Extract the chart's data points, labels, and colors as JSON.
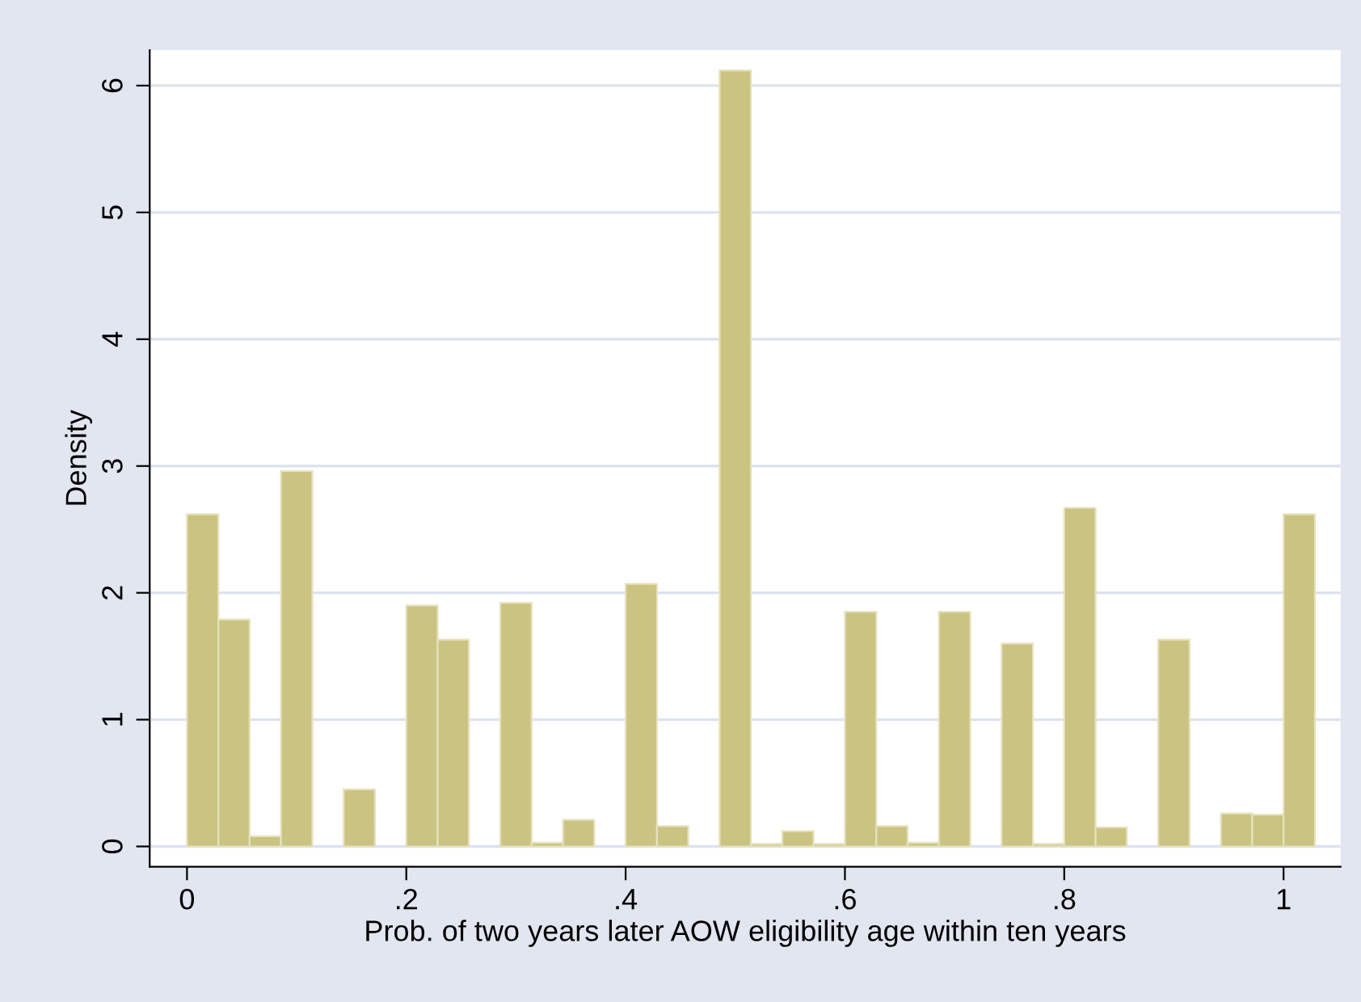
{
  "chart_data": {
    "type": "histogram",
    "xlabel": "Prob. of two years later AOW eligibility age within ten years",
    "ylabel": "Density",
    "bins": [
      0,
      0.0286,
      0.0571,
      0.0857,
      0.1143,
      0.1429,
      0.1714,
      0.2,
      0.2286,
      0.2571,
      0.2857,
      0.3143,
      0.3429,
      0.3714,
      0.4,
      0.4286,
      0.4571,
      0.4857,
      0.5143,
      0.5429,
      0.5714,
      0.6,
      0.6286,
      0.6571,
      0.6857,
      0.7143,
      0.7429,
      0.7714,
      0.8,
      0.8286,
      0.8571,
      0.8857,
      0.9143,
      0.9429,
      0.9714,
      1,
      1.0286
    ],
    "values": [
      2.62,
      1.79,
      0.08,
      2.96,
      0,
      0.45,
      0,
      1.9,
      1.63,
      0,
      1.92,
      0.03,
      0.21,
      0,
      2.07,
      0.16,
      0,
      6.12,
      0.02,
      0.12,
      0.02,
      1.85,
      0.16,
      0.03,
      1.85,
      0,
      1.6,
      0.02,
      2.67,
      0.15,
      0,
      1.63,
      0,
      0.26,
      0.25,
      2.62
    ],
    "color": "#cbc382",
    "xlim": [
      -0.034,
      1.052
    ],
    "ylim": [
      -0.16,
      6.28
    ],
    "xticks": [
      0,
      {
        "value": 0.2,
        "label": ".2"
      },
      {
        "value": 0.4,
        "label": ".4"
      },
      {
        "value": 0.6,
        "label": ".6"
      },
      {
        "value": 0.8,
        "label": ".8"
      },
      1
    ],
    "yticks": [
      0,
      1,
      2,
      3,
      4,
      5,
      6
    ],
    "grid": "y"
  }
}
